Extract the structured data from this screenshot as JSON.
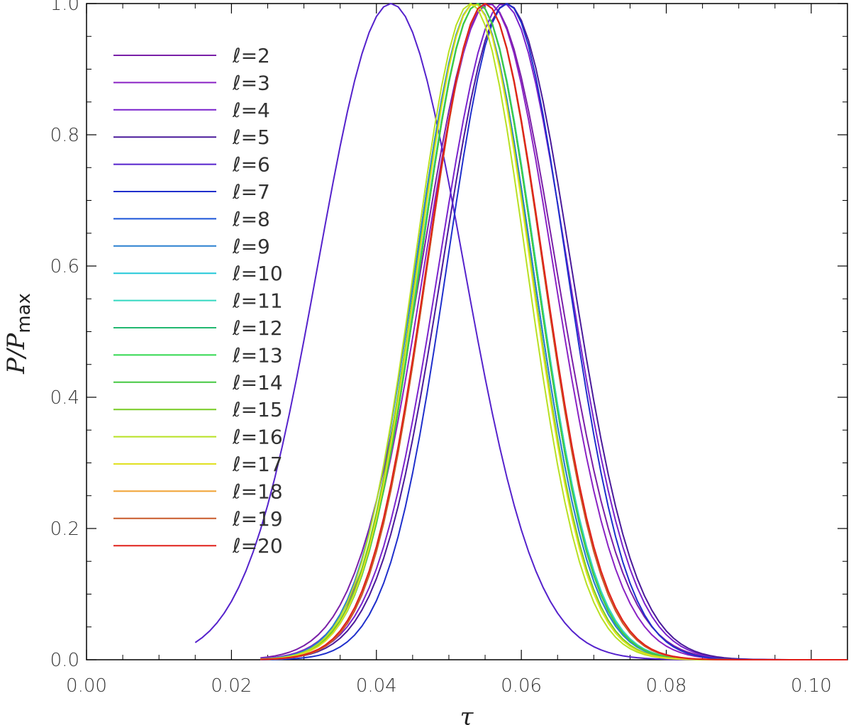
{
  "chart_data": {
    "type": "line",
    "xlabel": "τ",
    "ylabel": "P/P",
    "ylabel_sub": "max",
    "xlim": [
      0.0,
      0.105
    ],
    "ylim": [
      0.0,
      1.0
    ],
    "xticks": [
      0.0,
      0.02,
      0.04,
      0.06,
      0.08,
      0.1
    ],
    "xtick_labels": [
      "0.00",
      "0.02",
      "0.04",
      "0.06",
      "0.08",
      "0.10"
    ],
    "yticks": [
      0.0,
      0.2,
      0.4,
      0.6,
      0.8,
      1.0
    ],
    "ytick_labels": [
      "0.0",
      "0.2",
      "0.4",
      "0.6",
      "0.8",
      "1.0"
    ],
    "legend_position": "top-left",
    "series": [
      {
        "name": "ℓ=2",
        "color": "#7a1fa8",
        "mu": 0.0555,
        "sigma": 0.0092,
        "x_start": 0.024
      },
      {
        "name": "ℓ=3",
        "color": "#8a22c4",
        "mu": 0.0555,
        "sigma": 0.0088,
        "x_start": 0.024
      },
      {
        "name": "ℓ=4",
        "color": "#7a22cc",
        "mu": 0.0575,
        "sigma": 0.0088,
        "x_start": 0.024
      },
      {
        "name": "ℓ=5",
        "color": "#4a1a9a",
        "mu": 0.058,
        "sigma": 0.0088,
        "x_start": 0.024
      },
      {
        "name": "ℓ=6",
        "color": "#5522cc",
        "mu": 0.042,
        "sigma": 0.01,
        "x_start": 0.015
      },
      {
        "name": "ℓ=7",
        "color": "#1f2fcc",
        "mu": 0.058,
        "sigma": 0.0082,
        "x_start": 0.024
      },
      {
        "name": "ℓ=8",
        "color": "#1a55d8",
        "mu": 0.0535,
        "sigma": 0.008,
        "x_start": 0.024
      },
      {
        "name": "ℓ=9",
        "color": "#2a80d0",
        "mu": 0.0535,
        "sigma": 0.008,
        "x_start": 0.024
      },
      {
        "name": "ℓ=10",
        "color": "#22c8d8",
        "mu": 0.054,
        "sigma": 0.008,
        "x_start": 0.024
      },
      {
        "name": "ℓ=11",
        "color": "#33d8c0",
        "mu": 0.054,
        "sigma": 0.008,
        "x_start": 0.024
      },
      {
        "name": "ℓ=12",
        "color": "#22b870",
        "mu": 0.054,
        "sigma": 0.0079,
        "x_start": 0.024
      },
      {
        "name": "ℓ=13",
        "color": "#33d850",
        "mu": 0.054,
        "sigma": 0.0079,
        "x_start": 0.024
      },
      {
        "name": "ℓ=14",
        "color": "#44c840",
        "mu": 0.054,
        "sigma": 0.0079,
        "x_start": 0.024
      },
      {
        "name": "ℓ=15",
        "color": "#77cc22",
        "mu": 0.0535,
        "sigma": 0.0078,
        "x_start": 0.024
      },
      {
        "name": "ℓ=16",
        "color": "#b8e022",
        "mu": 0.053,
        "sigma": 0.0077,
        "x_start": 0.024
      },
      {
        "name": "ℓ=17",
        "color": "#e0e022",
        "mu": 0.0535,
        "sigma": 0.0077,
        "x_start": 0.024
      },
      {
        "name": "ℓ=18",
        "color": "#f0a030",
        "mu": 0.055,
        "sigma": 0.0079,
        "x_start": 0.024
      },
      {
        "name": "ℓ=19",
        "color": "#c85a2a",
        "mu": 0.055,
        "sigma": 0.0079,
        "x_start": 0.024
      },
      {
        "name": "ℓ=20",
        "color": "#e0201a",
        "mu": 0.055,
        "sigma": 0.008,
        "x_start": 0.024
      }
    ]
  }
}
